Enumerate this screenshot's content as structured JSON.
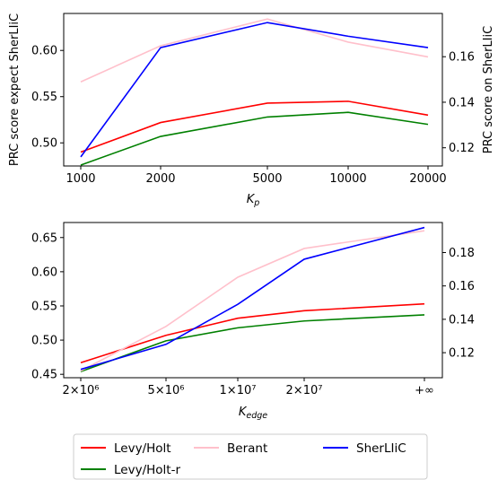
{
  "chart_data": [
    {
      "type": "line",
      "xlabel": "K",
      "xlabel_sub": "p",
      "ylabel_left": "PRC score expect SherLIiC",
      "ylabel_right": "PRC score on SherLIiC",
      "x": [
        1000,
        2000,
        5000,
        10000,
        20000
      ],
      "x_tick_labels": [
        "1000",
        "2000",
        "5000",
        "10000",
        "20000"
      ],
      "ylim_left": [
        0.475,
        0.64
      ],
      "ylim_right": [
        0.112,
        0.179
      ],
      "y_ticks_left": [
        0.5,
        0.55,
        0.6
      ],
      "y_tick_labels_left": [
        "0.50",
        "0.55",
        "0.60"
      ],
      "y_ticks_right": [
        0.12,
        0.14,
        0.16
      ],
      "y_tick_labels_right": [
        "0.12",
        "0.14",
        "0.16"
      ],
      "series": [
        {
          "name": "Levy/Holt",
          "axis": "left",
          "color": "#ff0000",
          "values": [
            0.49,
            0.522,
            0.543,
            0.545,
            0.53
          ]
        },
        {
          "name": "Levy/Holt-r",
          "axis": "left",
          "color": "#008000",
          "values": [
            0.476,
            0.507,
            0.528,
            0.533,
            0.52
          ]
        },
        {
          "name": "Berant",
          "axis": "left",
          "color": "#ffc0cb",
          "values": [
            0.566,
            0.605,
            0.634,
            0.609,
            0.593
          ]
        },
        {
          "name": "SherLIiC",
          "axis": "right",
          "color": "#0000ff",
          "values": [
            0.116,
            0.164,
            0.175,
            0.169,
            0.164
          ]
        }
      ],
      "grid": false
    },
    {
      "type": "line",
      "xlabel": "K",
      "xlabel_sub": "edge",
      "x_tick_labels": [
        "2×10⁶",
        "5×10⁶",
        "1×10⁷",
        "2×10⁷",
        "+∞"
      ],
      "ylim_left": [
        0.445,
        0.672
      ],
      "ylim_right": [
        0.105,
        0.198
      ],
      "y_ticks_left": [
        0.45,
        0.5,
        0.55,
        0.6,
        0.65
      ],
      "y_tick_labels_left": [
        "0.45",
        "0.50",
        "0.55",
        "0.60",
        "0.65"
      ],
      "y_ticks_right": [
        0.12,
        0.14,
        0.16,
        0.18
      ],
      "y_tick_labels_right": [
        "0.12",
        "0.14",
        "0.16",
        "0.18"
      ],
      "series": [
        {
          "name": "Levy/Holt",
          "axis": "left",
          "color": "#ff0000",
          "values": [
            0.467,
            0.507,
            0.532,
            0.543,
            0.553
          ]
        },
        {
          "name": "Levy/Holt-r",
          "axis": "left",
          "color": "#008000",
          "values": [
            0.454,
            0.499,
            0.518,
            0.528,
            0.537
          ]
        },
        {
          "name": "Berant",
          "axis": "left",
          "color": "#ffc0cb",
          "values": [
            0.455,
            0.52,
            0.592,
            0.634,
            0.66
          ]
        },
        {
          "name": "SherLIiC",
          "axis": "right",
          "color": "#0000ff",
          "values": [
            0.11,
            0.125,
            0.149,
            0.176,
            0.195
          ]
        }
      ],
      "grid": false
    }
  ],
  "legend": {
    "placement": "bottom",
    "entries": [
      {
        "label": "Levy/Holt",
        "color": "#ff0000"
      },
      {
        "label": "Berant",
        "color": "#ffc0cb"
      },
      {
        "label": "SherLIiC",
        "color": "#0000ff"
      },
      {
        "label": "Levy/Holt-r",
        "color": "#008000"
      }
    ]
  }
}
